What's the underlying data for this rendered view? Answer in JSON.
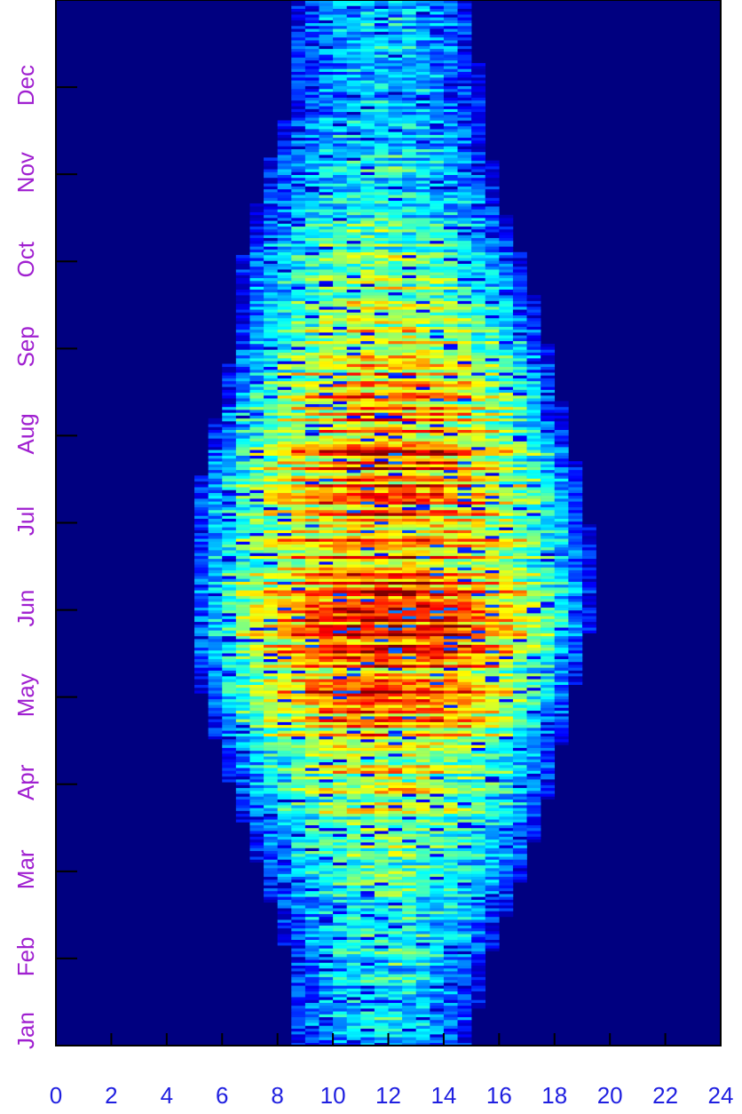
{
  "chart_data": {
    "type": "heatmap",
    "title": "",
    "xlabel": "",
    "ylabel": "",
    "x_range": [
      0,
      24
    ],
    "x_ticks": [
      "0",
      "2",
      "4",
      "6",
      "8",
      "10",
      "12",
      "14",
      "16",
      "18",
      "20",
      "22",
      "24"
    ],
    "y_months": [
      "Jan",
      "Feb",
      "Mar",
      "Apr",
      "May",
      "Jun",
      "Jul",
      "Aug",
      "Sep",
      "Oct",
      "Nov",
      "Dec"
    ],
    "y_range_days": [
      0,
      365
    ],
    "colormap": "jet",
    "background_color": "#000080",
    "frame_color": "#000000",
    "value_range": [
      0,
      1
    ],
    "envelope": [
      {
        "day": 0,
        "start": 8.4,
        "end": 15.0
      },
      {
        "day": 30,
        "start": 8.4,
        "end": 15.6
      },
      {
        "day": 60,
        "start": 7.4,
        "end": 16.9
      },
      {
        "day": 90,
        "start": 6.3,
        "end": 17.9
      },
      {
        "day": 120,
        "start": 5.3,
        "end": 18.6
      },
      {
        "day": 150,
        "start": 4.8,
        "end": 19.4
      },
      {
        "day": 180,
        "start": 4.8,
        "end": 19.3
      },
      {
        "day": 210,
        "start": 5.5,
        "end": 18.6
      },
      {
        "day": 240,
        "start": 6.3,
        "end": 17.9
      },
      {
        "day": 270,
        "start": 6.6,
        "end": 17.0
      },
      {
        "day": 300,
        "start": 7.4,
        "end": 15.9
      },
      {
        "day": 330,
        "start": 8.5,
        "end": 15.4
      },
      {
        "day": 365,
        "start": 8.4,
        "end": 15.0
      }
    ],
    "peak_intensity": [
      {
        "day": 0,
        "value": 0.32
      },
      {
        "day": 30,
        "value": 0.38
      },
      {
        "day": 60,
        "value": 0.45
      },
      {
        "day": 90,
        "value": 0.62
      },
      {
        "day": 120,
        "value": 0.9
      },
      {
        "day": 150,
        "value": 0.95
      },
      {
        "day": 180,
        "value": 0.85
      },
      {
        "day": 210,
        "value": 0.92
      },
      {
        "day": 240,
        "value": 0.7
      },
      {
        "day": 270,
        "value": 0.55
      },
      {
        "day": 300,
        "value": 0.4
      },
      {
        "day": 330,
        "value": 0.3
      },
      {
        "day": 365,
        "value": 0.32
      }
    ],
    "grid": false,
    "legend": "none"
  }
}
